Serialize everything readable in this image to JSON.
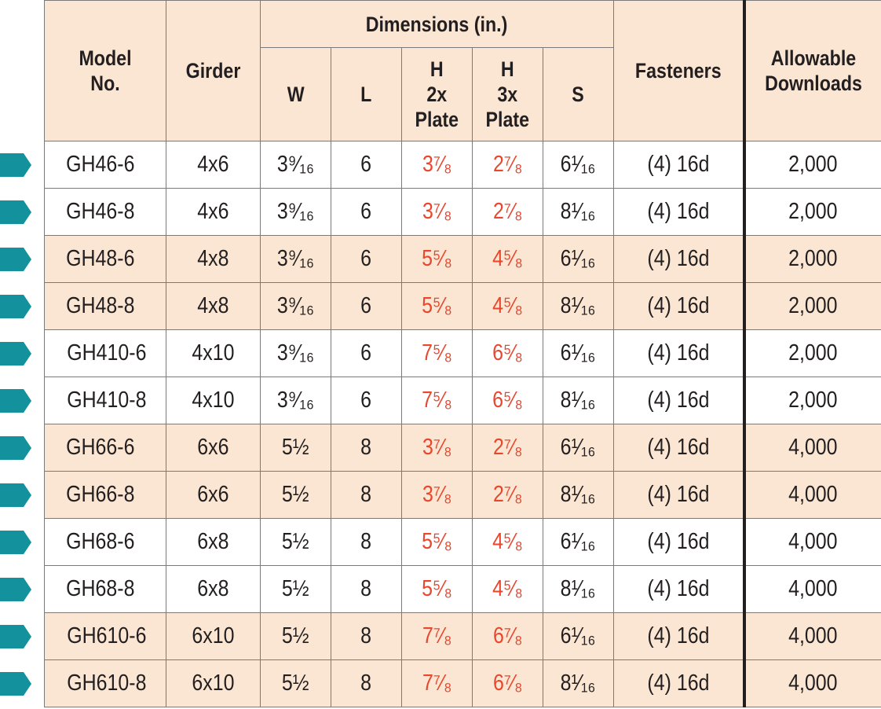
{
  "table": {
    "headers": {
      "model": "Model\nNo.",
      "girder": "Girder",
      "dimensions": "Dimensions (in.)",
      "w": "W",
      "l": "L",
      "h2x": "H\n2x\nPlate",
      "h3x": "H\n3x\nPlate",
      "s": "S",
      "fasteners": "Fasteners",
      "allowable": "Allowable\nDownloads"
    },
    "rows": [
      {
        "model": "GH46-6",
        "girder": "4x6",
        "w": "3⁹⁄₁₆",
        "l": "6",
        "h2x": "3⁷⁄₈",
        "h3x": "2⁷⁄₈",
        "s": "6¹⁄₁₆",
        "fasteners": "(4) 16d",
        "allowable": "2,000"
      },
      {
        "model": "GH46-8",
        "girder": "4x6",
        "w": "3⁹⁄₁₆",
        "l": "6",
        "h2x": "3⁷⁄₈",
        "h3x": "2⁷⁄₈",
        "s": "8¹⁄₁₆",
        "fasteners": "(4) 16d",
        "allowable": "2,000"
      },
      {
        "model": "GH48-6",
        "girder": "4x8",
        "w": "3⁹⁄₁₆",
        "l": "6",
        "h2x": "5⁵⁄₈",
        "h3x": "4⁵⁄₈",
        "s": "6¹⁄₁₆",
        "fasteners": "(4) 16d",
        "allowable": "2,000"
      },
      {
        "model": "GH48-8",
        "girder": "4x8",
        "w": "3⁹⁄₁₆",
        "l": "6",
        "h2x": "5⁵⁄₈",
        "h3x": "4⁵⁄₈",
        "s": "8¹⁄₁₆",
        "fasteners": "(4) 16d",
        "allowable": "2,000"
      },
      {
        "model": "GH410-6",
        "girder": "4x10",
        "w": "3⁹⁄₁₆",
        "l": "6",
        "h2x": "7⁵⁄₈",
        "h3x": "6⁵⁄₈",
        "s": "6¹⁄₁₆",
        "fasteners": "(4) 16d",
        "allowable": "2,000"
      },
      {
        "model": "GH410-8",
        "girder": "4x10",
        "w": "3⁹⁄₁₆",
        "l": "6",
        "h2x": "7⁵⁄₈",
        "h3x": "6⁵⁄₈",
        "s": "8¹⁄₁₆",
        "fasteners": "(4) 16d",
        "allowable": "2,000"
      },
      {
        "model": "GH66-6",
        "girder": "6x6",
        "w": "5½",
        "l": "8",
        "h2x": "3⁷⁄₈",
        "h3x": "2⁷⁄₈",
        "s": "6¹⁄₁₆",
        "fasteners": "(4) 16d",
        "allowable": "4,000"
      },
      {
        "model": "GH66-8",
        "girder": "6x6",
        "w": "5½",
        "l": "8",
        "h2x": "3⁷⁄₈",
        "h3x": "2⁷⁄₈",
        "s": "8¹⁄₁₆",
        "fasteners": "(4) 16d",
        "allowable": "4,000"
      },
      {
        "model": "GH68-6",
        "girder": "6x8",
        "w": "5½",
        "l": "8",
        "h2x": "5⁵⁄₈",
        "h3x": "4⁵⁄₈",
        "s": "6¹⁄₁₆",
        "fasteners": "(4) 16d",
        "allowable": "4,000"
      },
      {
        "model": "GH68-8",
        "girder": "6x8",
        "w": "5½",
        "l": "8",
        "h2x": "5⁵⁄₈",
        "h3x": "4⁵⁄₈",
        "s": "8¹⁄₁₆",
        "fasteners": "(4) 16d",
        "allowable": "4,000"
      },
      {
        "model": "GH610-6",
        "girder": "6x10",
        "w": "5½",
        "l": "8",
        "h2x": "7⁷⁄₈",
        "h3x": "6⁷⁄₈",
        "s": "6¹⁄₁₆",
        "fasteners": "(4) 16d",
        "allowable": "4,000"
      },
      {
        "model": "GH610-8",
        "girder": "6x10",
        "w": "5½",
        "l": "8",
        "h2x": "7⁷⁄₈",
        "h3x": "6⁷⁄₈",
        "s": "8¹⁄₁₆",
        "fasteners": "(4) 16d",
        "allowable": "4,000"
      }
    ],
    "colors": {
      "header_fill": "#fae6d2",
      "alt_row_fill": "#fae6d2",
      "h_value_text": "#e8462d",
      "marker": "#13929e",
      "grid": "#7a7a7a",
      "text": "#231f20"
    },
    "row_markers": "arrow-marker-icon"
  }
}
